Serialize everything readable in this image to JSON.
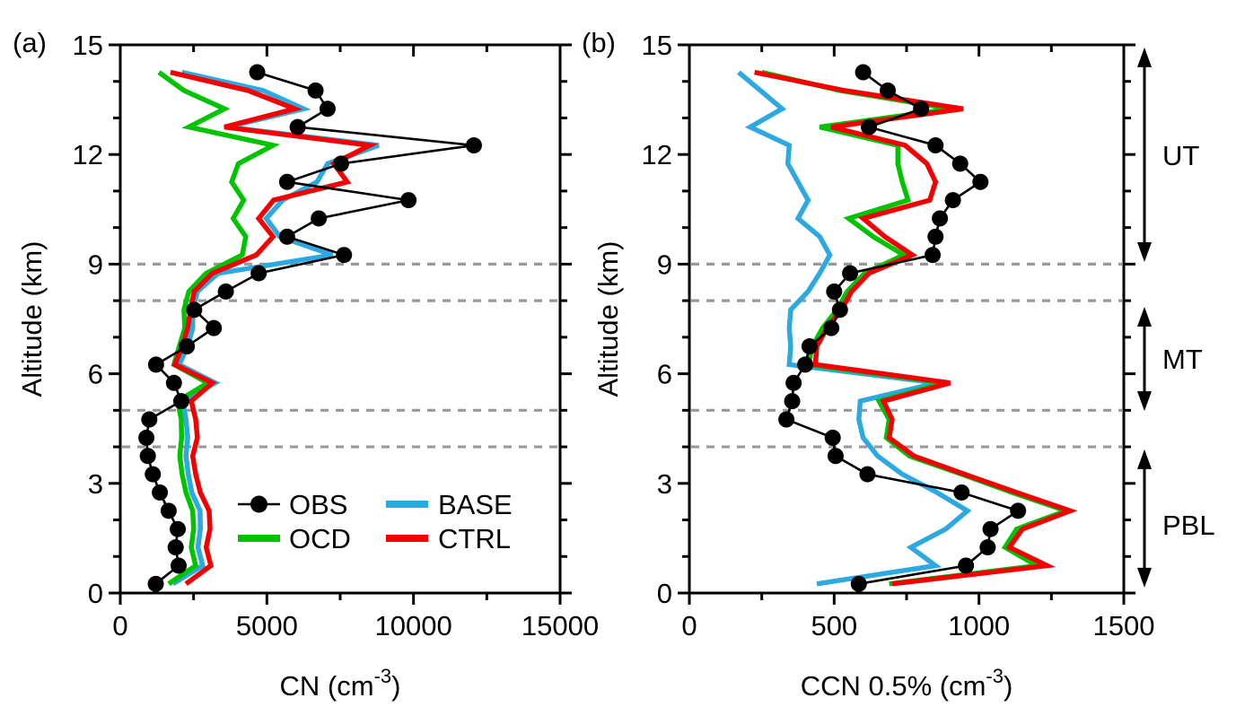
{
  "figure": {
    "panel_a_label": "(a)",
    "panel_b_label": "(b)",
    "ylabel": "Altitude (km)"
  },
  "colors": {
    "obs": "#000000",
    "ocd": "#00c400",
    "base": "#2ca9e1",
    "ctrl": "#f40000",
    "grid": "#999999",
    "frame": "#000000"
  },
  "legend": {
    "rows": [
      [
        {
          "key": "obs",
          "label": "OBS"
        },
        {
          "key": "base",
          "label": "BASE"
        }
      ],
      [
        {
          "key": "ocd",
          "label": "OCD"
        },
        {
          "key": "ctrl",
          "label": "CTRL"
        }
      ]
    ]
  },
  "annotations": {
    "layers": [
      {
        "label": "UT",
        "alt_from": 9.06,
        "alt_to": 14.93,
        "label_alt": 11.98
      },
      {
        "label": "MT",
        "alt_from": 4.98,
        "alt_to": 7.83,
        "label_alt": 6.41
      },
      {
        "label": "PBL",
        "alt_from": 0.15,
        "alt_to": 3.93,
        "label_alt": 1.87
      }
    ]
  },
  "chart_data": [
    {
      "type": "line",
      "panel": "a",
      "xlabel_main": "CN (cm",
      "xlabel_sup": "-3",
      "xlabel_close": ")",
      "ylabel": "Altitude (km)",
      "xlim": [
        0,
        15000
      ],
      "xticks": [
        0,
        5000,
        10000,
        15000
      ],
      "xminor_step": 2500,
      "ylim": [
        0,
        15
      ],
      "yticks": [
        0,
        3,
        6,
        9,
        12,
        15
      ],
      "yminor_step": 1,
      "grid_alts": [
        4,
        5,
        8,
        9
      ],
      "legend_position": "inside-lower-right",
      "altitudes": [
        0.25,
        0.75,
        1.25,
        1.75,
        2.25,
        2.75,
        3.25,
        3.75,
        4.25,
        4.75,
        5.25,
        5.75,
        6.25,
        6.75,
        7.25,
        7.75,
        8.25,
        8.75,
        9.25,
        9.75,
        10.25,
        10.75,
        11.25,
        11.75,
        12.25,
        12.75,
        13.25,
        13.75,
        14.25
      ],
      "series": [
        {
          "name": "OBS",
          "key": "obs",
          "marker": "circle",
          "values": [
            1210,
            1990,
            1890,
            1960,
            1650,
            1350,
            1110,
            940,
            890,
            990,
            2080,
            1830,
            1220,
            2270,
            3190,
            2520,
            3600,
            4720,
            7630,
            5690,
            6770,
            9830,
            5690,
            7530,
            12060,
            6050,
            7070,
            6660,
            4670
          ]
        },
        {
          "name": "BASE",
          "key": "base",
          "marker": "none",
          "values": [
            1790,
            2810,
            2650,
            2730,
            2720,
            2440,
            2320,
            2240,
            2300,
            2240,
            2130,
            3240,
            2010,
            2300,
            2470,
            2470,
            2630,
            3340,
            7230,
            5440,
            4980,
            5540,
            6710,
            7070,
            8810,
            3650,
            6250,
            4870,
            2100
          ]
        },
        {
          "name": "OCD",
          "key": "ocd",
          "marker": "none",
          "values": [
            1650,
            2570,
            2420,
            2500,
            2470,
            2240,
            2110,
            2030,
            2090,
            2080,
            1960,
            2980,
            1830,
            2010,
            2200,
            2170,
            2340,
            2930,
            4160,
            4280,
            3850,
            4210,
            3800,
            4030,
            5210,
            2340,
            3550,
            2170,
            1320
          ]
        },
        {
          "name": "CTRL",
          "key": "ctrl",
          "marker": "none",
          "values": [
            2240,
            3090,
            2930,
            3060,
            3030,
            2730,
            2570,
            2470,
            2630,
            2570,
            2420,
            3140,
            1860,
            2110,
            2300,
            2400,
            2520,
            3140,
            4640,
            5210,
            4720,
            5230,
            7740,
            7280,
            8510,
            3550,
            5950,
            4360,
            1710
          ]
        }
      ]
    },
    {
      "type": "line",
      "panel": "b",
      "xlabel_main": "CCN 0.5% (cm",
      "xlabel_sup": "-3",
      "xlabel_close": ")",
      "ylabel": "Altitude (km)",
      "xlim": [
        0,
        1500
      ],
      "xticks": [
        0,
        500,
        1000,
        1500
      ],
      "xminor_step": 250,
      "ylim": [
        0,
        15
      ],
      "yticks": [
        0,
        3,
        6,
        9,
        12,
        15
      ],
      "yminor_step": 1,
      "grid_alts": [
        4,
        5,
        8,
        9
      ],
      "legend_position": "none",
      "altitudes": [
        0.25,
        0.75,
        1.25,
        1.75,
        2.25,
        2.75,
        3.25,
        3.75,
        4.25,
        4.75,
        5.25,
        5.75,
        6.25,
        6.75,
        7.25,
        7.75,
        8.25,
        8.75,
        9.25,
        9.75,
        10.25,
        10.75,
        11.25,
        11.75,
        12.25,
        12.75,
        13.25,
        13.75,
        14.25
      ],
      "series": [
        {
          "name": "OBS",
          "key": "obs",
          "marker": "circle",
          "values": [
            585,
            955,
            1030,
            1040,
            1135,
            940,
            615,
            505,
            495,
            335,
            355,
            360,
            400,
            415,
            490,
            520,
            500,
            555,
            840,
            850,
            865,
            910,
            1005,
            935,
            850,
            620,
            800,
            685,
            600
          ]
        },
        {
          "name": "BASE",
          "key": "base",
          "marker": "none",
          "values": [
            440,
            850,
            765,
            885,
            960,
            855,
            735,
            650,
            600,
            585,
            590,
            855,
            345,
            350,
            345,
            350,
            410,
            450,
            485,
            450,
            375,
            410,
            375,
            340,
            345,
            210,
            320,
            245,
            170
          ]
        },
        {
          "name": "OCD",
          "key": "ocd",
          "marker": "none",
          "values": [
            690,
            1200,
            1090,
            1130,
            1300,
            1115,
            940,
            760,
            680,
            690,
            655,
            880,
            410,
            425,
            460,
            510,
            545,
            605,
            740,
            635,
            550,
            755,
            735,
            720,
            720,
            450,
            905,
            520,
            250
          ]
        },
        {
          "name": "CTRL",
          "key": "ctrl",
          "marker": "none",
          "values": [
            700,
            1235,
            1105,
            1150,
            1315,
            1130,
            950,
            775,
            690,
            700,
            670,
            900,
            435,
            440,
            475,
            525,
            560,
            620,
            770,
            675,
            600,
            830,
            850,
            820,
            745,
            490,
            945,
            535,
            225
          ]
        }
      ]
    }
  ]
}
